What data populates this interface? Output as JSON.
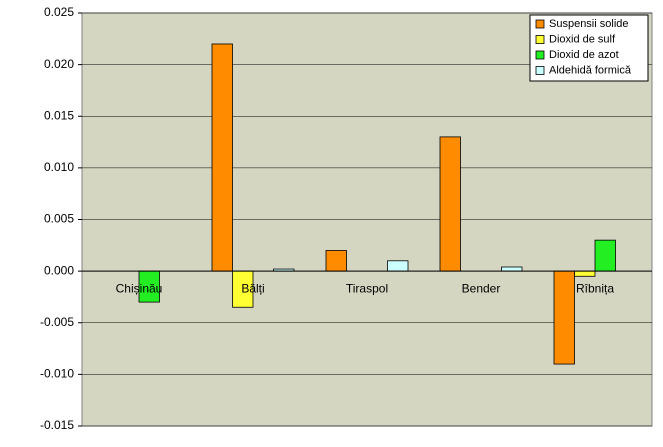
{
  "chart_data": {
    "type": "bar",
    "categories": [
      "Chișinău",
      "Bălți",
      "Tiraspol",
      "Bender",
      "Rîbnița"
    ],
    "series": [
      {
        "name": "Suspensii solide",
        "color": "#ff8c00",
        "values": [
          0,
          0.022,
          0.002,
          0.013,
          -0.009
        ]
      },
      {
        "name": "Dioxid de sulf",
        "color": "#ffff33",
        "values": [
          0,
          -0.0035,
          0,
          0,
          -0.0005
        ]
      },
      {
        "name": "Dioxid de azot",
        "color": "#22ee22",
        "values": [
          -0.003,
          0,
          0,
          0,
          0.003
        ]
      },
      {
        "name": "Aldehidă formică",
        "color": "#ccffff",
        "values": [
          0,
          0.0002,
          0.001,
          0.0004,
          0
        ]
      }
    ],
    "ylim": [
      -0.015,
      0.025
    ],
    "yticks": [
      -0.015,
      {
        "value": -0.01,
        "label": "-0.010"
      },
      -0.005,
      {
        "value": 0,
        "label": "0.000"
      },
      0.005,
      {
        "value": 0.01,
        "label": "0.010"
      },
      0.015,
      {
        "value": 0.02,
        "label": "0.020"
      },
      0.025
    ],
    "grid": true,
    "legend": "top-right",
    "background": "#d4d6c2"
  }
}
